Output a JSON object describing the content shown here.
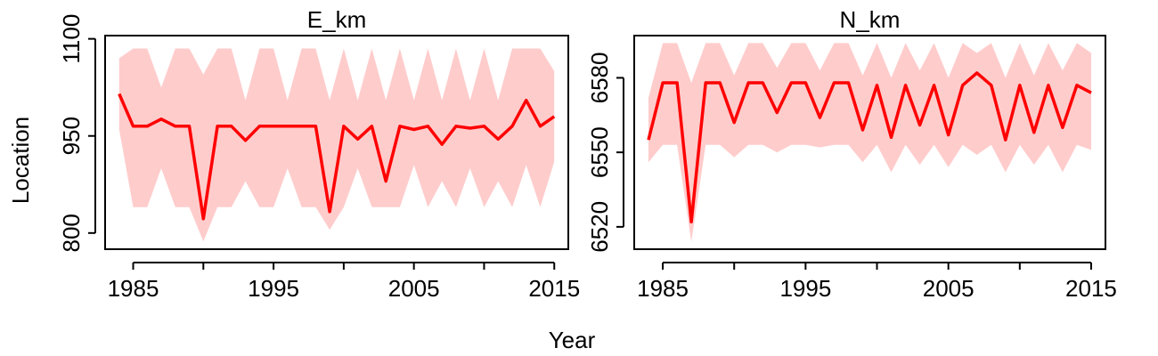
{
  "figure": {
    "xlabel": "Year",
    "ylabel": "Location"
  },
  "colors": {
    "line": "#ff0000",
    "band": "#ffcccc",
    "frame": "#000000"
  },
  "chart_data": [
    {
      "type": "line",
      "title": "E_km",
      "xlabel": "Year",
      "ylabel": "Location",
      "xlim": [
        1983,
        2016
      ],
      "ylim": [
        775,
        1105
      ],
      "xticks": [
        "1985",
        "1995",
        "2005",
        "2015"
      ],
      "yticks": [
        "800",
        "950",
        "1100"
      ],
      "series": [
        {
          "x": [
            1984,
            1985,
            1986,
            1987,
            1988,
            1989,
            1990,
            1991,
            1992,
            1993,
            1994,
            1995,
            1996,
            1997,
            1998,
            1999,
            2000,
            2001,
            2002,
            2003,
            2004,
            2005,
            2006,
            2007,
            2008,
            2009,
            2010,
            2011,
            2012,
            2013,
            2014,
            2015
          ],
          "values": [
            1015,
            965,
            965,
            976,
            965,
            965,
            822,
            965,
            965,
            943,
            965,
            965,
            965,
            965,
            965,
            833,
            965,
            945,
            965,
            880,
            965,
            960,
            965,
            937,
            965,
            962,
            965,
            945,
            965,
            1005,
            965,
            980
          ],
          "upper": [
            1070,
            1085,
            1085,
            1025,
            1085,
            1085,
            1045,
            1085,
            1085,
            1005,
            1085,
            1085,
            1005,
            1085,
            1085,
            1005,
            1085,
            1005,
            1085,
            1005,
            1085,
            1005,
            1085,
            1005,
            1085,
            1005,
            1085,
            1005,
            1085,
            1085,
            1085,
            1050
          ],
          "lower": [
            960,
            840,
            840,
            900,
            840,
            840,
            787,
            840,
            840,
            880,
            840,
            840,
            900,
            840,
            840,
            805,
            840,
            900,
            840,
            840,
            840,
            905,
            840,
            880,
            840,
            900,
            840,
            880,
            840,
            905,
            840,
            910
          ]
        }
      ]
    },
    {
      "type": "line",
      "title": "N_km",
      "xlabel": "Year",
      "ylabel": "Location",
      "xlim": [
        1983,
        2016
      ],
      "ylim": [
        6511,
        6597
      ],
      "xticks": [
        "1985",
        "1995",
        "2005",
        "2015"
      ],
      "yticks": [
        "6520",
        "6550",
        "6580"
      ],
      "series": [
        {
          "x": [
            1984,
            1985,
            1986,
            1987,
            1988,
            1989,
            1990,
            1991,
            1992,
            1993,
            1994,
            1995,
            1996,
            1997,
            1998,
            1999,
            2000,
            2001,
            2002,
            2003,
            2004,
            2005,
            2006,
            2007,
            2008,
            2009,
            2010,
            2011,
            2012,
            2013,
            2014,
            2015
          ],
          "values": [
            6555,
            6578,
            6578,
            6522,
            6578,
            6578,
            6562,
            6578,
            6578,
            6566,
            6578,
            6578,
            6564,
            6578,
            6578,
            6559,
            6577,
            6556,
            6577,
            6561,
            6577,
            6557,
            6577,
            6582,
            6577,
            6555,
            6577,
            6558,
            6577,
            6560,
            6577,
            6574
          ],
          "upper": [
            6572,
            6594,
            6594,
            6578,
            6594,
            6594,
            6581,
            6594,
            6594,
            6584,
            6594,
            6594,
            6583,
            6594,
            6594,
            6581,
            6594,
            6580,
            6594,
            6583,
            6594,
            6580,
            6594,
            6590,
            6594,
            6580,
            6594,
            6581,
            6594,
            6583,
            6594,
            6590
          ],
          "lower": [
            6546,
            6553,
            6553,
            6514,
            6553,
            6553,
            6548,
            6553,
            6553,
            6550,
            6553,
            6553,
            6552,
            6553,
            6553,
            6546,
            6553,
            6542,
            6553,
            6545,
            6553,
            6544,
            6553,
            6549,
            6553,
            6542,
            6553,
            6545,
            6553,
            6542,
            6553,
            6551
          ]
        }
      ]
    }
  ]
}
